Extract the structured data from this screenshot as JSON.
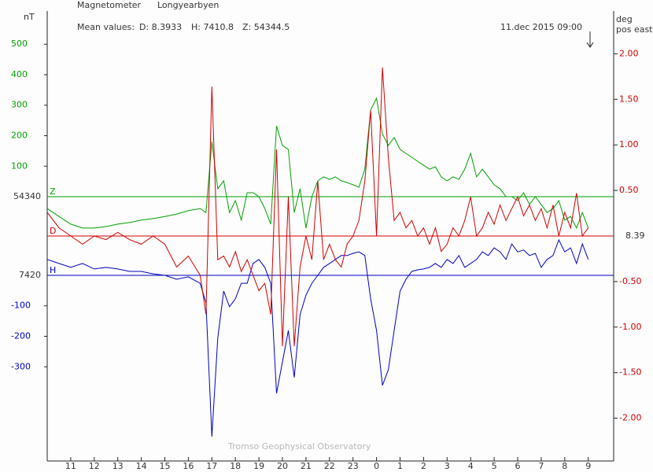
{
  "chart_data": {
    "type": "line",
    "title": "Magnetometer",
    "station": "Longyearbyen",
    "left_unit": "nT",
    "right_unit": "deg",
    "right_unit_note": "pos east",
    "mean_label": "Mean values:",
    "means": [
      "D: 8.3933",
      "H: 7410.8",
      "Z: 54344.5"
    ],
    "timestamp": "11.dec 2015 09:00",
    "credit": "Tromso Geophysical Observatory",
    "xlim": [
      0,
      24.08
    ],
    "xticks": [
      {
        "value": 1,
        "label": "11"
      },
      {
        "value": 2,
        "label": "12"
      },
      {
        "value": 3,
        "label": "13"
      },
      {
        "value": 4,
        "label": "14"
      },
      {
        "value": 5,
        "label": "15"
      },
      {
        "value": 6,
        "label": "16"
      },
      {
        "value": 7,
        "label": "17"
      },
      {
        "value": 8,
        "label": "18"
      },
      {
        "value": 9,
        "label": "19"
      },
      {
        "value": 10,
        "label": "20"
      },
      {
        "value": 11,
        "label": "21"
      },
      {
        "value": 12,
        "label": "22"
      },
      {
        "value": 13,
        "label": "23"
      },
      {
        "value": 14,
        "label": "0"
      },
      {
        "value": 15,
        "label": "1"
      },
      {
        "value": 16,
        "label": "2"
      },
      {
        "value": 17,
        "label": "3"
      },
      {
        "value": 18,
        "label": "4"
      },
      {
        "value": 19,
        "label": "5"
      },
      {
        "value": 20,
        "label": "6"
      },
      {
        "value": 21,
        "label": "7"
      },
      {
        "value": 22,
        "label": "8"
      },
      {
        "value": 23,
        "label": "9"
      }
    ],
    "x": [
      0,
      0.5,
      1,
      1.5,
      2,
      2.5,
      3,
      3.5,
      4,
      4.5,
      5,
      5.5,
      6,
      6.5,
      6.75,
      7,
      7.25,
      7.5,
      7.75,
      8,
      8.25,
      8.5,
      8.75,
      9,
      9.25,
      9.5,
      9.75,
      10,
      10.25,
      10.5,
      10.75,
      11,
      11.25,
      11.5,
      11.75,
      12,
      12.25,
      12.5,
      12.75,
      13,
      13.25,
      13.5,
      13.75,
      14,
      14.25,
      14.5,
      14.75,
      15,
      15.25,
      15.5,
      15.75,
      16,
      16.25,
      16.5,
      16.75,
      17,
      17.25,
      17.5,
      17.75,
      18,
      18.25,
      18.5,
      18.75,
      19,
      19.25,
      19.5,
      19.75,
      20,
      20.25,
      20.5,
      20.75,
      21,
      21.25,
      21.5,
      21.75,
      22,
      22.25,
      22.5,
      22.75,
      23
    ],
    "series": [
      {
        "name": "Z",
        "color": "#00a000",
        "baseline_label": "54340",
        "ylim": [
          -867,
          609
        ],
        "yticks": [
          500,
          400,
          300,
          200,
          100
        ],
        "values": [
          -39,
          -65,
          -90,
          -103,
          -103,
          -98,
          -90,
          -85,
          -77,
          -72,
          -65,
          -57,
          -46,
          -39,
          -52,
          181,
          26,
          52,
          -52,
          -13,
          -77,
          13,
          13,
          0,
          -39,
          -90,
          232,
          168,
          155,
          -52,
          26,
          -103,
          0,
          52,
          65,
          57,
          65,
          52,
          46,
          39,
          31,
          90,
          284,
          323,
          206,
          168,
          194,
          155,
          142,
          129,
          116,
          103,
          90,
          98,
          65,
          52,
          65,
          57,
          90,
          142,
          65,
          90,
          65,
          39,
          26,
          0,
          0,
          -13,
          13,
          -26,
          0,
          -26,
          -52,
          -39,
          -13,
          -77,
          -65,
          -103,
          -52,
          -103
        ]
      },
      {
        "name": "H",
        "color": "#0000c0",
        "baseline_label": "7420",
        "ylim": [
          -609,
          867
        ],
        "yticks": [
          -100,
          -200,
          -300
        ],
        "values": [
          52,
          39,
          26,
          39,
          21,
          26,
          21,
          13,
          13,
          5,
          0,
          -13,
          -5,
          -26,
          -90,
          -529,
          -206,
          -52,
          -103,
          -77,
          -26,
          -26,
          39,
          52,
          26,
          -26,
          -387,
          -284,
          -181,
          -335,
          -129,
          -65,
          -26,
          0,
          26,
          39,
          52,
          65,
          65,
          72,
          77,
          65,
          -77,
          -181,
          -361,
          -310,
          -181,
          -52,
          -13,
          13,
          18,
          21,
          26,
          39,
          26,
          52,
          39,
          65,
          26,
          39,
          52,
          77,
          65,
          90,
          77,
          52,
          103,
          77,
          83,
          65,
          72,
          26,
          52,
          65,
          116,
          77,
          90,
          39,
          103,
          52
        ]
      },
      {
        "name": "D",
        "color": "#d00000",
        "baseline_label": "8.39",
        "axis": "y2",
        "ylim": [
          -2.47,
          2.47
        ],
        "yticks": [
          {
            "value": 2,
            "label": "2.00"
          },
          {
            "value": 1.5,
            "label": "1.50"
          },
          {
            "value": 1,
            "label": "1.00"
          },
          {
            "value": 0.5,
            "label": "0.50"
          },
          {
            "value": -0.5,
            "label": "-0.50"
          },
          {
            "value": -1,
            "label": "-1.00"
          },
          {
            "value": -1.5,
            "label": "-1.50"
          },
          {
            "value": -2,
            "label": "-2.00"
          }
        ],
        "values": [
          0.26,
          0.09,
          0,
          -0.09,
          0,
          -0.04,
          0.04,
          -0.04,
          -0.09,
          0,
          -0.09,
          -0.34,
          -0.22,
          -0.43,
          -0.86,
          1.64,
          -0.26,
          -0.22,
          -0.34,
          -0.17,
          -0.39,
          -0.26,
          -0.43,
          -0.6,
          -0.52,
          -0.86,
          0.95,
          -1.21,
          0.43,
          -1.21,
          -0.34,
          0,
          -0.26,
          0.6,
          -0.26,
          -0.09,
          -0.26,
          -0.34,
          -0.09,
          0,
          0.17,
          0.6,
          1.38,
          0,
          1.85,
          0.86,
          0.17,
          0.26,
          0.09,
          0.17,
          0,
          0.09,
          -0.09,
          0.09,
          -0.17,
          -0.09,
          0.09,
          0,
          0.17,
          0.43,
          0,
          0.09,
          0.26,
          0.13,
          0.34,
          0.17,
          0.3,
          0.43,
          0.22,
          0.34,
          0.17,
          0.3,
          0.09,
          0.34,
          0,
          0.26,
          0.09,
          0.47,
          0,
          0.09
        ]
      }
    ]
  }
}
